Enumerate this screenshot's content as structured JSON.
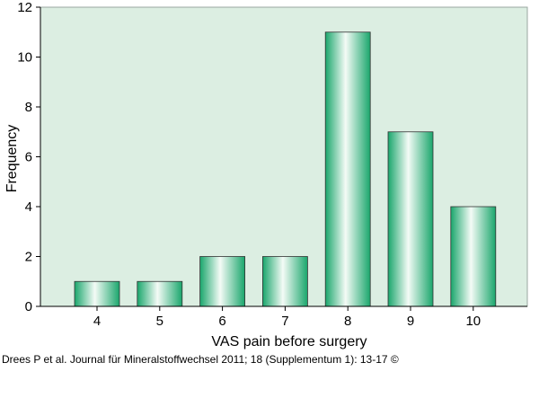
{
  "chart_data": {
    "type": "bar",
    "categories": [
      "4",
      "5",
      "6",
      "7",
      "8",
      "9",
      "10"
    ],
    "values": [
      1,
      1,
      2,
      2,
      11,
      7,
      4
    ],
    "title": "",
    "xlabel": "VAS pain before surgery",
    "ylabel": "Frequency",
    "ylim": [
      0,
      12
    ],
    "yticks": [
      "0",
      "2",
      "4",
      "6",
      "8",
      "10",
      "12"
    ],
    "grid": false,
    "colors": {
      "plot_background": "#dceee2",
      "bar_center": "#f4fbf6",
      "bar_edge": "#1aa66c"
    }
  },
  "credit": "Drees P et al. Journal für Mineralstoffwechsel 2011; 18 (Supplementum 1): 13-17 ©"
}
